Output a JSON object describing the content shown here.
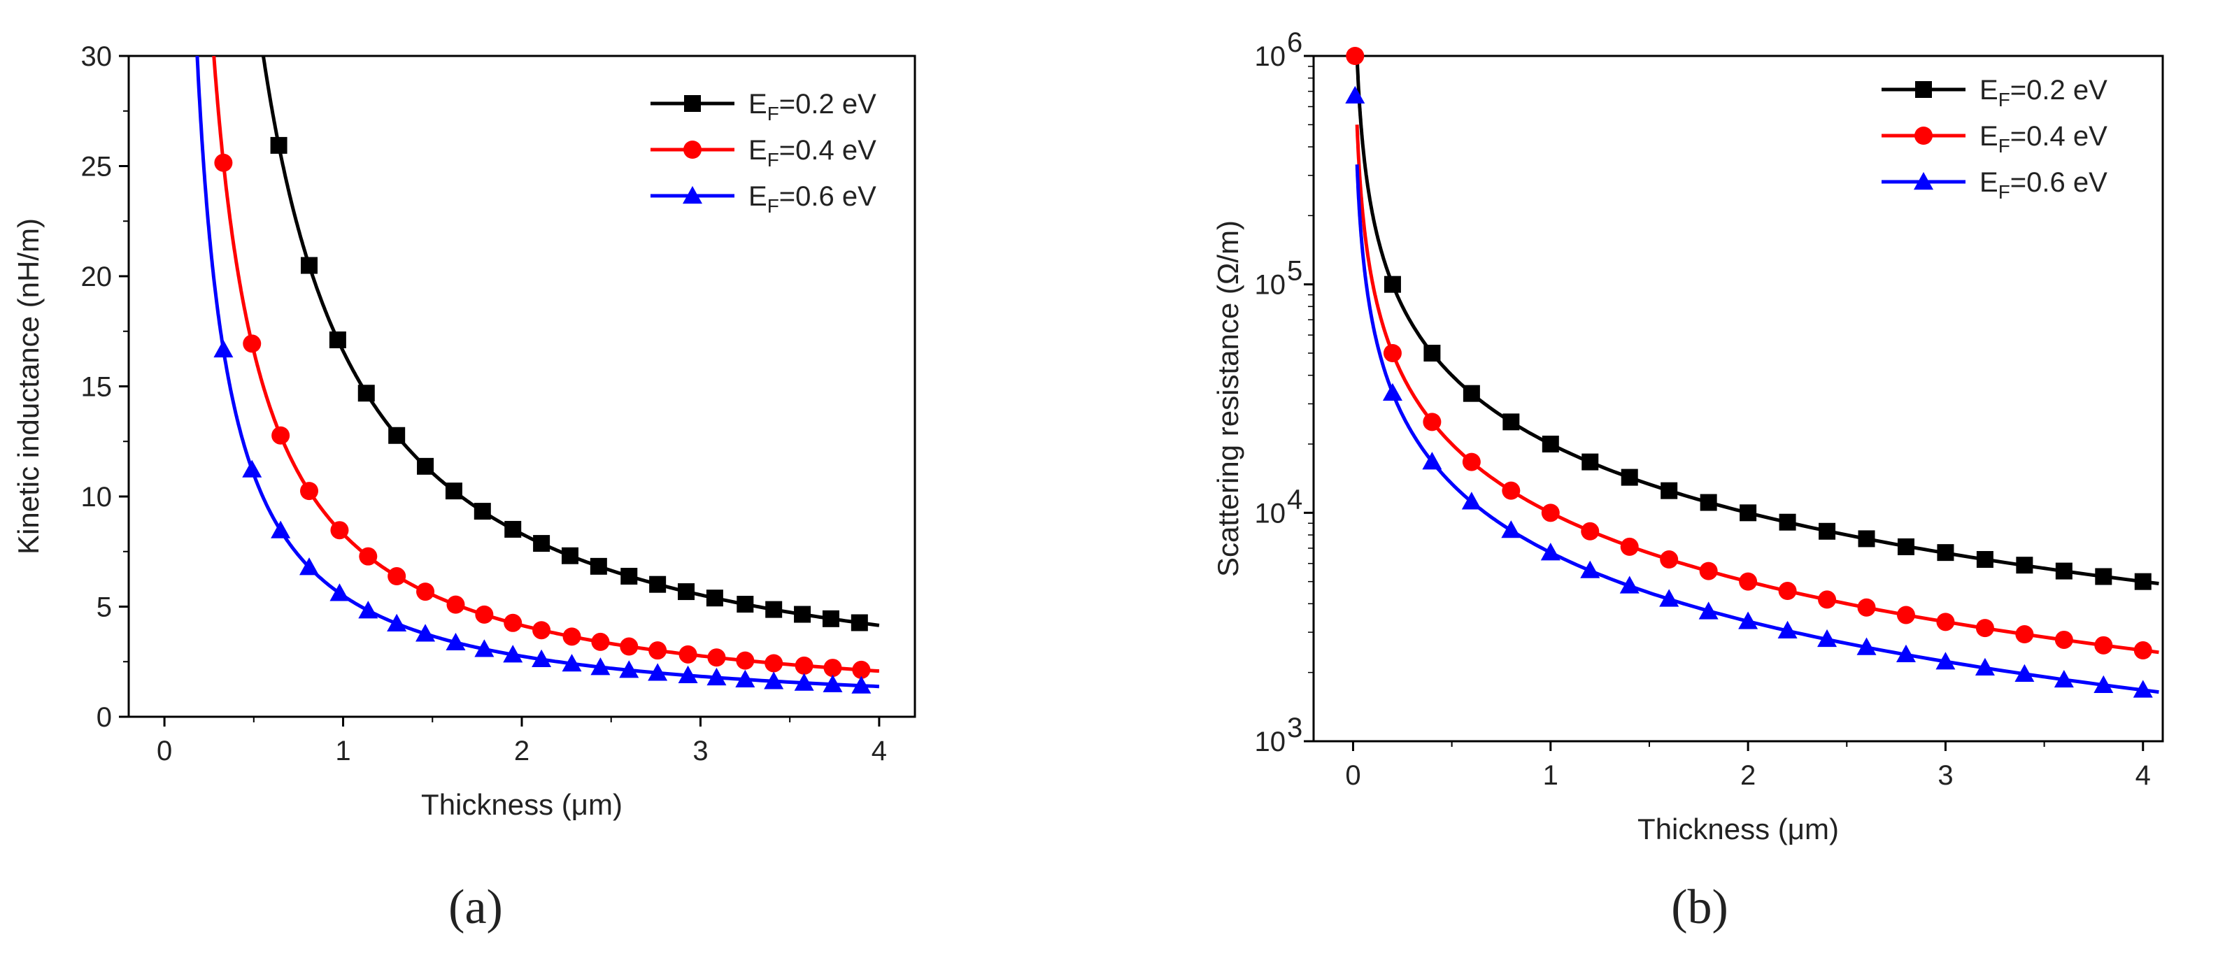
{
  "chart_data": [
    {
      "type": "line",
      "panel_label": "(a)",
      "xlabel": "Thickness (μm)",
      "ylabel": "Kinetic inductance (nH/m)",
      "xlim": [
        -0.2,
        4.2
      ],
      "ylim": [
        0,
        30
      ],
      "yscale": "linear",
      "xticks": [
        "0",
        "1",
        "2",
        "3",
        "4"
      ],
      "yticks": [
        "0",
        "5",
        "10",
        "15",
        "20",
        "25",
        "30"
      ],
      "legend_position": "top-right",
      "series": [
        {
          "name": "EF=0.2 eV",
          "name_main": "E",
          "name_sub": "F",
          "name_rest": "=0.2 eV",
          "color": "#000000",
          "marker": "square",
          "k": 16.6,
          "x": [
            0.64,
            0.81,
            0.97,
            1.13,
            1.3,
            1.46,
            1.62,
            1.78,
            1.95,
            2.11,
            2.27,
            2.43,
            2.6,
            2.76,
            2.92,
            3.08,
            3.25,
            3.41,
            3.57,
            3.73,
            3.89
          ],
          "y": [
            25.94,
            20.49,
            17.11,
            14.69,
            12.77,
            11.37,
            10.25,
            9.33,
            8.51,
            7.87,
            7.31,
            6.83,
            6.38,
            6.01,
            5.68,
            5.39,
            5.11,
            4.87,
            4.65,
            4.45,
            4.27
          ]
        },
        {
          "name": "EF=0.4 eV",
          "name_main": "E",
          "name_sub": "F",
          "name_rest": "=0.4 eV",
          "color": "#ff0000",
          "marker": "circle",
          "k": 8.3,
          "x": [
            0.33,
            0.49,
            0.65,
            0.81,
            0.98,
            1.14,
            1.3,
            1.46,
            1.63,
            1.79,
            1.95,
            2.11,
            2.28,
            2.44,
            2.6,
            2.76,
            2.93,
            3.09,
            3.25,
            3.41,
            3.58,
            3.74,
            3.9
          ],
          "y": [
            25.15,
            16.94,
            12.77,
            10.25,
            8.47,
            7.28,
            6.38,
            5.68,
            5.09,
            4.64,
            4.26,
            3.93,
            3.64,
            3.4,
            3.19,
            3.01,
            2.83,
            2.69,
            2.55,
            2.43,
            2.32,
            2.22,
            2.13
          ]
        },
        {
          "name": "EF=0.6 eV",
          "name_main": "E",
          "name_sub": "F",
          "name_rest": "=0.6 eV",
          "color": "#0000ff",
          "marker": "triangle",
          "k": 5.5,
          "x": [
            0.33,
            0.49,
            0.65,
            0.81,
            0.98,
            1.14,
            1.3,
            1.46,
            1.63,
            1.79,
            1.95,
            2.11,
            2.28,
            2.44,
            2.6,
            2.76,
            2.93,
            3.09,
            3.25,
            3.41,
            3.58,
            3.74,
            3.9
          ],
          "y": [
            16.67,
            11.22,
            8.46,
            6.79,
            5.61,
            4.82,
            4.23,
            3.77,
            3.37,
            3.07,
            2.82,
            2.61,
            2.41,
            2.25,
            2.12,
            1.99,
            1.88,
            1.78,
            1.69,
            1.61,
            1.54,
            1.47,
            1.41
          ]
        }
      ]
    },
    {
      "type": "line",
      "panel_label": "(b)",
      "xlabel": "Thickness (μm)",
      "ylabel": "Scattering resistance (Ω/m)",
      "xlim": [
        -0.2,
        4.1
      ],
      "ylim": [
        1000,
        1000000
      ],
      "yscale": "log",
      "xticks": [
        "0",
        "1",
        "2",
        "3",
        "4"
      ],
      "yticks": [
        {
          "value": 1000,
          "base": "10",
          "exp": "3"
        },
        {
          "value": 10000,
          "base": "10",
          "exp": "4"
        },
        {
          "value": 100000,
          "base": "10",
          "exp": "5"
        },
        {
          "value": 1000000,
          "base": "10",
          "exp": "6"
        }
      ],
      "legend_position": "top-right",
      "series": [
        {
          "name": "EF=0.2 eV",
          "name_main": "E",
          "name_sub": "F",
          "name_rest": "=0.2 eV",
          "color": "#000000",
          "marker": "square",
          "k": 20000,
          "x": [
            0.2,
            0.4,
            0.6,
            0.8,
            1.0,
            1.2,
            1.4,
            1.6,
            1.8,
            2.0,
            2.2,
            2.4,
            2.6,
            2.8,
            3.0,
            3.2,
            3.4,
            3.6,
            3.8,
            4.0
          ],
          "y": [
            100000,
            50000,
            33300,
            25000,
            20000,
            16700,
            14300,
            12500,
            11100,
            10000,
            9100,
            8300,
            7700,
            7100,
            6700,
            6250,
            5900,
            5560,
            5260,
            5000
          ]
        },
        {
          "name": "EF=0.4 eV",
          "name_main": "E",
          "name_sub": "F",
          "name_rest": "=0.4 eV",
          "color": "#ff0000",
          "marker": "circle",
          "k": 10000,
          "x": [
            0.01,
            0.2,
            0.4,
            0.6,
            0.8,
            1.0,
            1.2,
            1.4,
            1.6,
            1.8,
            2.0,
            2.2,
            2.4,
            2.6,
            2.8,
            3.0,
            3.2,
            3.4,
            3.6,
            3.8,
            4.0
          ],
          "y": [
            1000000,
            50000,
            25000,
            16700,
            12500,
            10000,
            8300,
            7100,
            6250,
            5560,
            5000,
            4550,
            4170,
            3850,
            3570,
            3330,
            3130,
            2940,
            2780,
            2630,
            2500
          ]
        },
        {
          "name": "EF=0.6 eV",
          "name_main": "E",
          "name_sub": "F",
          "name_rest": "=0.6 eV",
          "color": "#0000ff",
          "marker": "triangle",
          "k": 6700,
          "x": [
            0.01,
            0.2,
            0.4,
            0.6,
            0.8,
            1.0,
            1.2,
            1.4,
            1.6,
            1.8,
            2.0,
            2.2,
            2.4,
            2.6,
            2.8,
            3.0,
            3.2,
            3.4,
            3.6,
            3.8,
            4.0
          ],
          "y": [
            670000,
            33500,
            16750,
            11200,
            8400,
            6700,
            5600,
            4800,
            4200,
            3700,
            3350,
            3050,
            2800,
            2580,
            2400,
            2230,
            2100,
            1970,
            1860,
            1760,
            1680
          ]
        }
      ]
    }
  ]
}
